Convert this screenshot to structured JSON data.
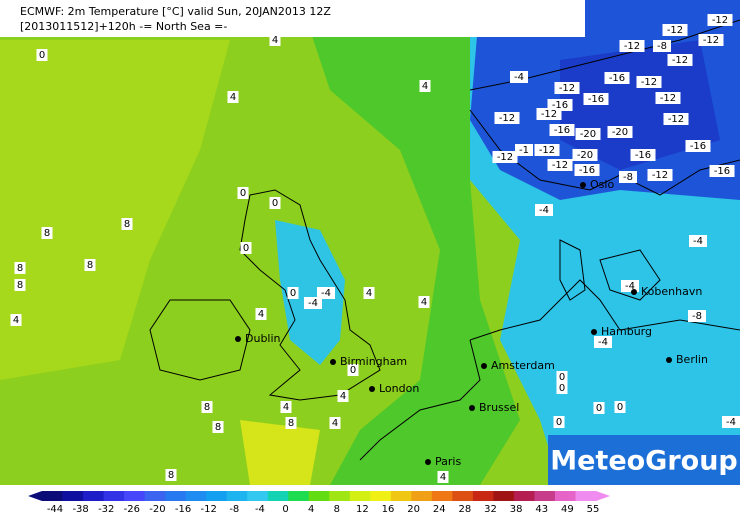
{
  "header": {
    "line1": "ECMWF: 2m Temperature [°C] valid Sun, 20JAN2013 12Z",
    "line2": "[2013011512]+120h -= North Sea =-"
  },
  "contour_labels": [
    "0",
    "4",
    "4",
    "4",
    "0",
    "0",
    "8",
    "8",
    "8",
    "8",
    "8",
    "4",
    "0",
    "4",
    "4",
    "4",
    "0",
    "-4",
    "-4",
    "0",
    "4",
    "8",
    "4",
    "8",
    "8",
    "4",
    "8",
    "4",
    "0",
    "0",
    "0",
    "0",
    "0",
    "-4",
    "-4",
    "-4",
    "-4",
    "-8",
    "-4",
    "-12",
    "-8",
    "-12",
    "-12",
    "-12",
    "-12",
    "-4",
    "-16",
    "-12",
    "-12",
    "-16",
    "-12",
    "-16",
    "-12",
    "-16",
    "-20",
    "-20",
    "-12",
    "-1",
    "-12",
    "-12",
    "-20",
    "-16",
    "-12",
    "-16",
    "-12",
    "-8",
    "-16",
    "-16",
    "-12"
  ],
  "cities": [
    "Oslo",
    "Kobenhavn",
    "Hamburg",
    "Berlin",
    "Dublin",
    "Birmingham",
    "London",
    "Amsterdam",
    "Brussel",
    "Paris"
  ],
  "logo": "MeteoGroup",
  "colorbar": {
    "ticks": [
      -44,
      -38,
      -32,
      -26,
      -20,
      -16,
      -12,
      -8,
      -4,
      0,
      4,
      8,
      12,
      16,
      20,
      24,
      28,
      32,
      38,
      43,
      49,
      55
    ],
    "colors": [
      "#0c0c78",
      "#1010a0",
      "#1e1ec8",
      "#3232e6",
      "#4646fa",
      "#3c64f0",
      "#2878f0",
      "#1e8cf0",
      "#14a0f0",
      "#1eb4f0",
      "#32c8f0",
      "#14d2b4",
      "#1edc50",
      "#64dc14",
      "#a0e614",
      "#d2f014",
      "#f0f014",
      "#f0c814",
      "#f0a014",
      "#f07814",
      "#dc5014",
      "#c82814",
      "#a01414",
      "#b41e50",
      "#c83c8c",
      "#e664c8",
      "#f08cf0"
    ]
  }
}
